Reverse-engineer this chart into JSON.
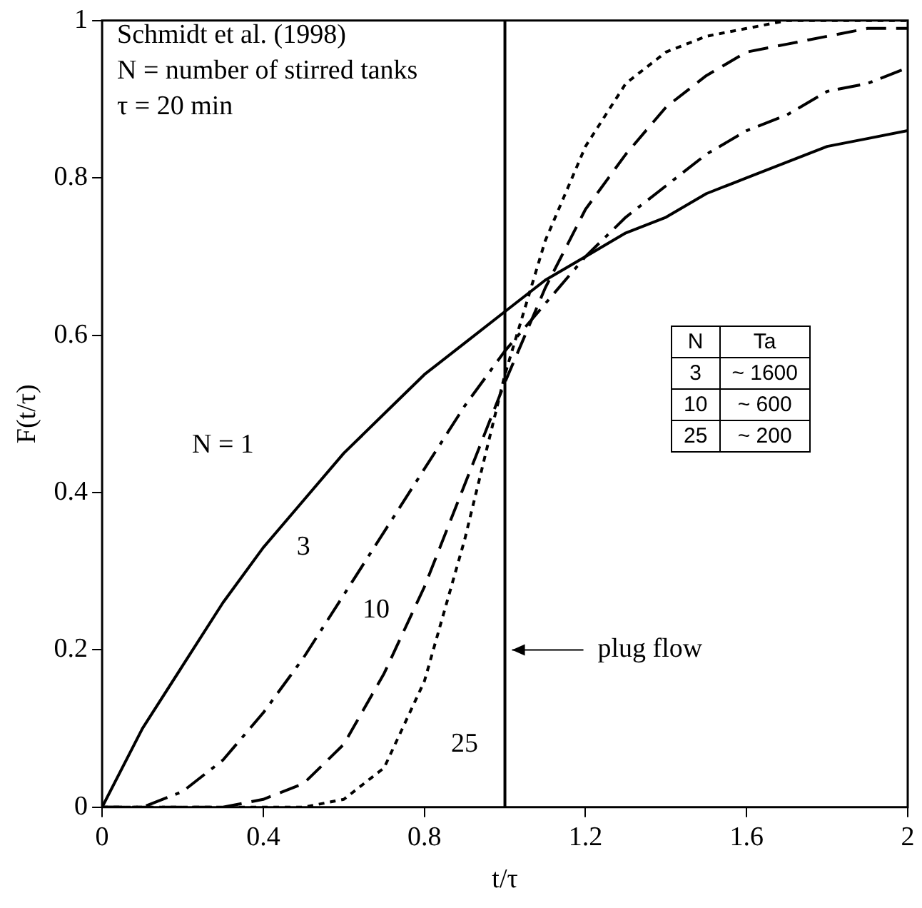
{
  "chart_data": {
    "type": "line",
    "xlabel": "t/τ",
    "ylabel": "F(t/τ)",
    "x": [
      0,
      0.1,
      0.2,
      0.3,
      0.4,
      0.5,
      0.6,
      0.7,
      0.8,
      0.9,
      1,
      1.1,
      1.2,
      1.3,
      1.4,
      1.5,
      1.6,
      1.7,
      1.8,
      1.9,
      2
    ],
    "series": [
      {
        "name": "N = 1",
        "color": "#000000",
        "line_style": "solid",
        "values": [
          0,
          0.1,
          0.18,
          0.26,
          0.33,
          0.39,
          0.45,
          0.5,
          0.55,
          0.59,
          0.63,
          0.67,
          0.7,
          0.73,
          0.75,
          0.78,
          0.8,
          0.82,
          0.84,
          0.85,
          0.86
        ]
      },
      {
        "name": "3",
        "color": "#000000",
        "line_style": "dashdot",
        "values": [
          0,
          0,
          0.02,
          0.06,
          0.12,
          0.19,
          0.27,
          0.35,
          0.43,
          0.51,
          0.58,
          0.64,
          0.7,
          0.75,
          0.79,
          0.83,
          0.86,
          0.88,
          0.91,
          0.92,
          0.94
        ]
      },
      {
        "name": "10",
        "color": "#000000",
        "line_style": "dashed",
        "values": [
          0,
          0,
          0,
          0,
          0.01,
          0.03,
          0.08,
          0.17,
          0.28,
          0.41,
          0.54,
          0.66,
          0.76,
          0.83,
          0.89,
          0.93,
          0.96,
          0.97,
          0.98,
          0.99,
          0.99
        ]
      },
      {
        "name": "25",
        "color": "#000000",
        "line_style": "dotted",
        "values": [
          0,
          0,
          0,
          0,
          0,
          0,
          0.01,
          0.05,
          0.16,
          0.34,
          0.55,
          0.72,
          0.84,
          0.92,
          0.96,
          0.98,
          0.99,
          1,
          1,
          1,
          1
        ]
      }
    ],
    "xlim": [
      0,
      2
    ],
    "xticks": [
      0,
      0.4,
      0.8,
      1.2,
      1.6,
      2
    ],
    "ylim": [
      0,
      1
    ],
    "yticks": [
      0,
      0.2,
      0.4,
      0.6,
      0.8,
      1
    ],
    "ref_lines": [
      {
        "axis": "x",
        "value": 1,
        "label": "plug flow",
        "color": "#000000"
      }
    ],
    "annotations": [
      "Schmidt et al. (1998)",
      "N = number of stirred tanks",
      "τ = 20 min",
      "N",
      "Ta",
      "3",
      "~ 1600",
      "10",
      "~ 600",
      "25",
      "~ 200"
    ],
    "grid": false,
    "legend": "right",
    "marker": "none"
  }
}
